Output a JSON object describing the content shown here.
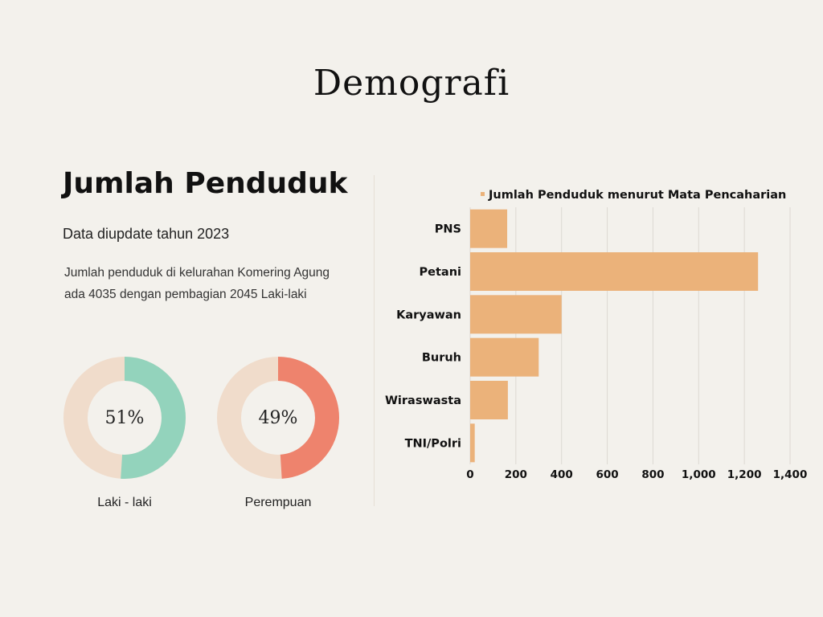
{
  "page_title": "Demografi",
  "section_title": "Jumlah Penduduk",
  "update_note": "Data diupdate tahun 2023",
  "description": "Jumlah penduduk di kelurahan Komering Agung ada 4035 dengan pembagian 2045 Laki-laki",
  "donuts": [
    {
      "label": "Laki - laki",
      "value_text": "51%",
      "fraction": 0.51,
      "color": "#93d3bc",
      "track_color": "#f0dccb"
    },
    {
      "label": "Perempuan",
      "value_text": "49%",
      "fraction": 0.49,
      "color": "#ee836d",
      "track_color": "#f0dccb"
    }
  ],
  "chart_data": {
    "type": "bar",
    "orientation": "horizontal",
    "title": "",
    "legend": "Jumlah Penduduk menurut Mata Pencaharian",
    "legend_position": "top",
    "categories": [
      "PNS",
      "Petani",
      "Karyawan",
      "Buruh",
      "Wiraswasta",
      "TNI/Polri"
    ],
    "values": [
      162,
      1260,
      400,
      300,
      165,
      20
    ],
    "xlim": [
      0,
      1400
    ],
    "xticks": [
      0,
      200,
      400,
      600,
      800,
      1000,
      1200,
      1400
    ],
    "xtick_labels": [
      "0",
      "200",
      "400",
      "600",
      "800",
      "1,000",
      "1,200",
      "1,400"
    ],
    "grid": true,
    "bar_color": "#ebb27a",
    "grid_color": "#dcd8d2"
  }
}
